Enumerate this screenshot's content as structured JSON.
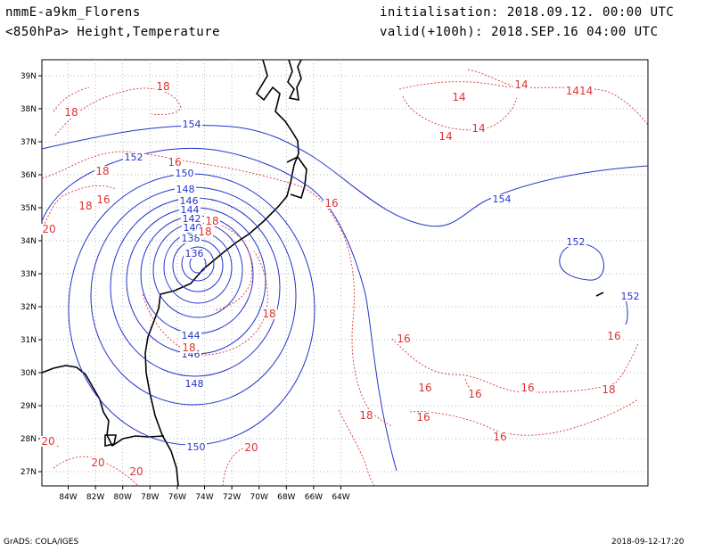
{
  "header": {
    "model": "nmmE-a9km_Florens",
    "level": "<850hPa> Height,Temperature",
    "init": "initialisation: 2018.09.12.  00:00 UTC",
    "valid": "valid(+100h): 2018.SEP.16 04:00 UTC"
  },
  "footer": {
    "left": "GrADS: COLA/IGES",
    "right": "2018-09-12-17:20"
  },
  "map": {
    "lon_ticks": [
      "84W",
      "82W",
      "80W",
      "78W",
      "76W",
      "74W",
      "72W",
      "70W",
      "68W",
      "66W",
      "64W"
    ],
    "lat_ticks": [
      "39N",
      "38N",
      "37N",
      "36N",
      "35N",
      "34N",
      "33N",
      "32N",
      "31N",
      "30N",
      "29N",
      "28N",
      "27N"
    ],
    "height_color": "#2233cc",
    "temp_color": "#dd3333",
    "coast_color": "#000000",
    "height_labels": [
      "154",
      "152",
      "150",
      "148",
      "146",
      "144",
      "142",
      "140",
      "138",
      "136",
      "144",
      "146",
      "148",
      "150",
      "154",
      "152",
      "152"
    ],
    "temp_labels": [
      "18",
      "18",
      "18",
      "18",
      "16",
      "20",
      "16",
      "18",
      "18",
      "18",
      "18",
      "18",
      "16",
      "16",
      "14",
      "14",
      "14",
      "14",
      "1414",
      "16",
      "16",
      "16",
      "16",
      "16",
      "16",
      "18",
      "20",
      "20",
      "20",
      "20"
    ]
  }
}
